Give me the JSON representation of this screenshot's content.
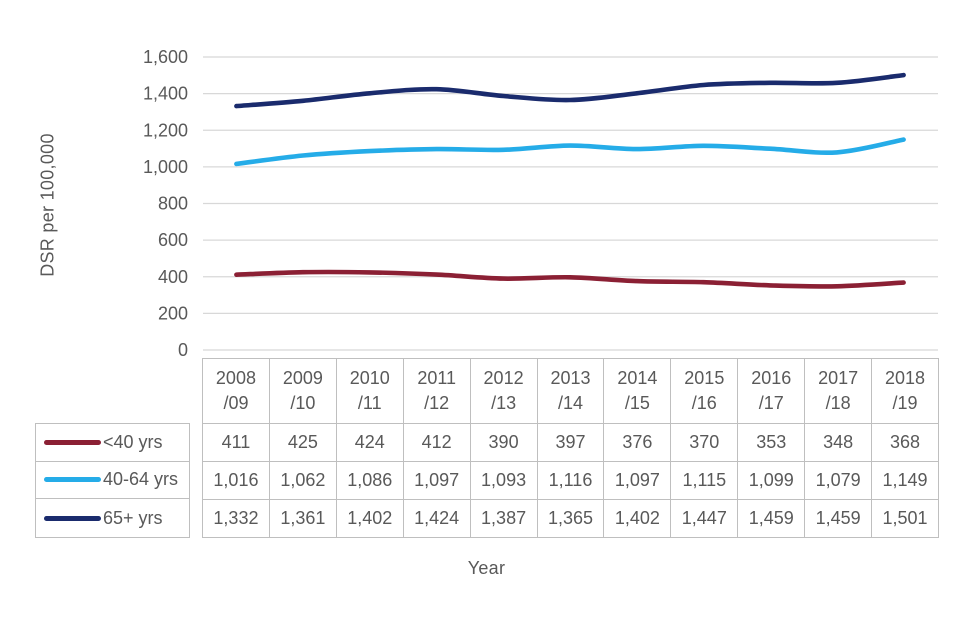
{
  "colors": {
    "background": "#FFFFFF",
    "grid": "#D8D8D8",
    "table_border": "#BFBFBF",
    "text": "#595959"
  },
  "chart_data": {
    "type": "line",
    "title": "",
    "xlabel": "Year",
    "ylabel": "DSR per 100,000",
    "ylim": [
      0,
      1600
    ],
    "ytick_step": 200,
    "yticks": [
      "0",
      "200",
      "400",
      "600",
      "800",
      "1,000",
      "1,200",
      "1,400",
      "1,600"
    ],
    "grid": true,
    "smooth_lines": true,
    "legend_position": "table-left",
    "categories": [
      "2008/09",
      "2009/10",
      "2010/11",
      "2011/12",
      "2012/13",
      "2013/14",
      "2014/15",
      "2015/16",
      "2016/17",
      "2017/18",
      "2018/19"
    ],
    "series": [
      {
        "name": "<40 yrs",
        "color": "#8B2034",
        "values": [
          411,
          425,
          424,
          412,
          390,
          397,
          376,
          370,
          353,
          348,
          368
        ],
        "labels": [
          "411",
          "425",
          "424",
          "412",
          "390",
          "397",
          "376",
          "370",
          "353",
          "348",
          "368"
        ]
      },
      {
        "name": "40-64 yrs",
        "color": "#25ACE8",
        "values": [
          1016,
          1062,
          1086,
          1097,
          1093,
          1116,
          1097,
          1115,
          1099,
          1079,
          1149
        ],
        "labels": [
          "1,016",
          "1,062",
          "1,086",
          "1,097",
          "1,093",
          "1,116",
          "1,097",
          "1,115",
          "1,099",
          "1,079",
          "1,149"
        ]
      },
      {
        "name": "65+ yrs",
        "color": "#1A2B6D",
        "values": [
          1332,
          1361,
          1402,
          1424,
          1387,
          1365,
          1402,
          1447,
          1459,
          1459,
          1501
        ],
        "labels": [
          "1,332",
          "1,361",
          "1,402",
          "1,424",
          "1,387",
          "1,365",
          "1,402",
          "1,447",
          "1,459",
          "1,459",
          "1,501"
        ]
      }
    ]
  }
}
